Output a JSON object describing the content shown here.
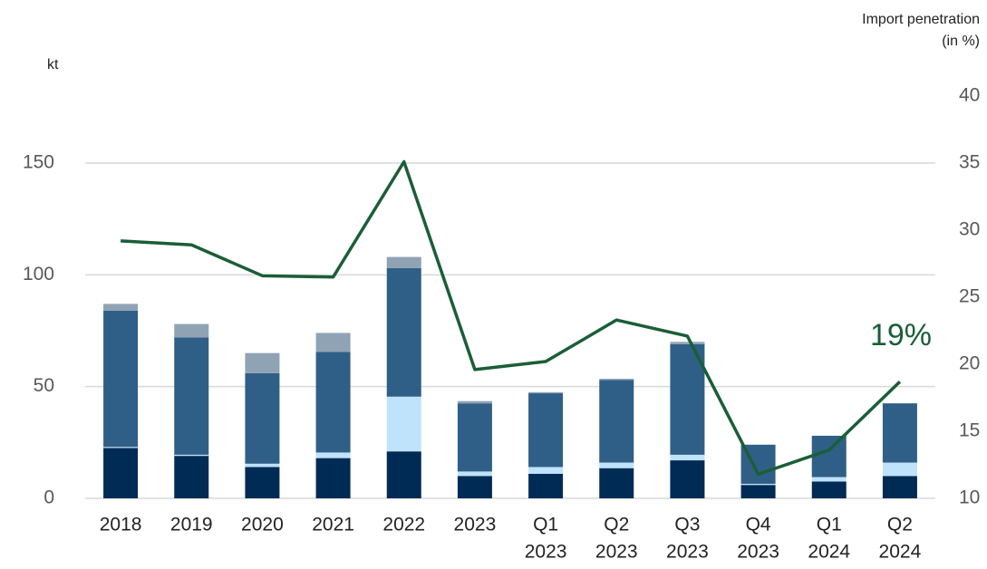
{
  "chart_data": {
    "type": "bar",
    "y_label": "kt",
    "y2_label": [
      "Import penetration",
      "(in %)"
    ],
    "categories": [
      [
        "2018"
      ],
      [
        "2019"
      ],
      [
        "2020"
      ],
      [
        "2021"
      ],
      [
        "2022"
      ],
      [
        "2023"
      ],
      [
        "Q1",
        "2023"
      ],
      [
        "Q2",
        "2023"
      ],
      [
        "Q3",
        "2023"
      ],
      [
        "Q4",
        "2023"
      ],
      [
        "Q1",
        "2024"
      ],
      [
        "Q2",
        "2024"
      ]
    ],
    "stacked": true,
    "series": [
      {
        "color": "#002b55",
        "values": [
          22.5,
          19,
          14,
          18,
          21,
          10,
          11,
          13.5,
          17,
          6,
          7.5,
          10
        ]
      },
      {
        "color": "#bfe3fb",
        "values": [
          0.5,
          0.5,
          1.5,
          2.5,
          24.5,
          2,
          3,
          2.5,
          2.5,
          0.5,
          2,
          6
        ]
      },
      {
        "color": "#2f5f86",
        "values": [
          61,
          52.5,
          40.5,
          45,
          57.5,
          30.5,
          33,
          37,
          49.5,
          17.5,
          18.5,
          26.5
        ]
      },
      {
        "color": "#8fa3b5",
        "values": [
          3,
          6,
          9,
          8.5,
          5,
          1,
          0.5,
          0.5,
          1,
          0,
          0,
          0
        ]
      },
      {
        "type": "line",
        "axis": "y2",
        "color": "#1a5e37",
        "values": [
          29.2,
          28.9,
          26.6,
          26.5,
          35.1,
          19.6,
          20.2,
          23.3,
          22.1,
          11.8,
          13.6,
          18.7
        ]
      }
    ],
    "annotation": "19%",
    "ylim": [
      0,
      180
    ],
    "yticks": [
      0,
      50,
      100,
      150
    ],
    "y2lim": [
      10,
      40
    ],
    "y2ticks": [
      10,
      15,
      20,
      25,
      30,
      35,
      40
    ],
    "grid": true
  }
}
